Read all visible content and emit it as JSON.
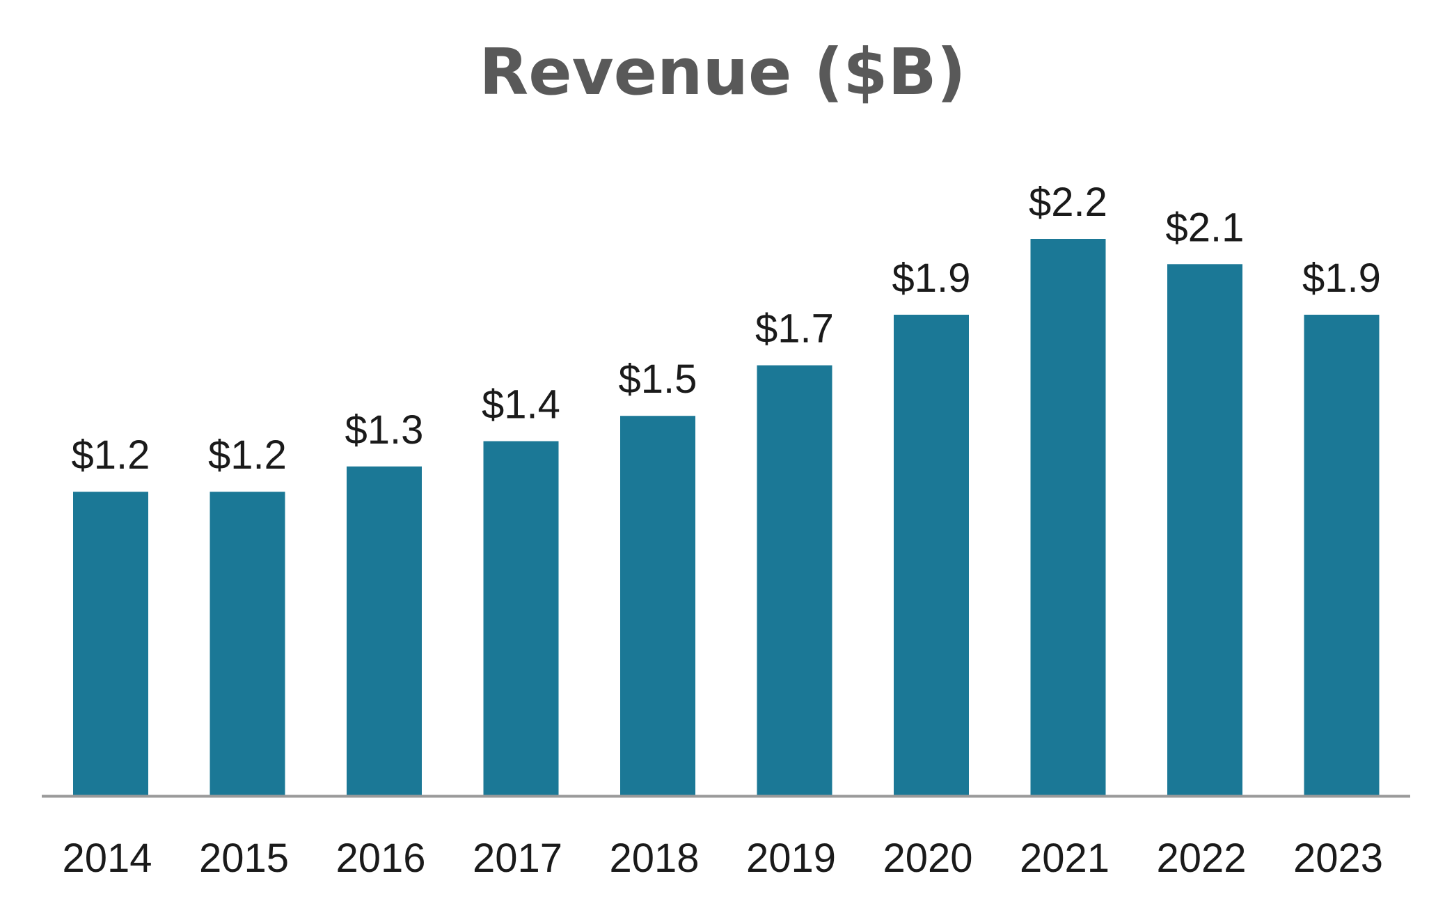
{
  "chart_data": {
    "type": "bar",
    "title": "Revenue ($B)",
    "xlabel": "",
    "ylabel": "",
    "categories": [
      "2014",
      "2015",
      "2016",
      "2017",
      "2018",
      "2019",
      "2020",
      "2021",
      "2022",
      "2023"
    ],
    "values": [
      1.2,
      1.2,
      1.3,
      1.4,
      1.5,
      1.7,
      1.9,
      2.2,
      2.1,
      1.9
    ],
    "value_labels": [
      "$1.2",
      "$1.2",
      "$1.3",
      "$1.4",
      "$1.5",
      "$1.7",
      "$1.9",
      "$2.2",
      "$2.1",
      "$1.9"
    ],
    "ylim": [
      0,
      2.2
    ],
    "grid": false,
    "legend": "none",
    "colors": {
      "bar": "#1B7896",
      "axis": "#9a9a9a",
      "title": "#595959",
      "text": "#1a1a1a"
    }
  }
}
